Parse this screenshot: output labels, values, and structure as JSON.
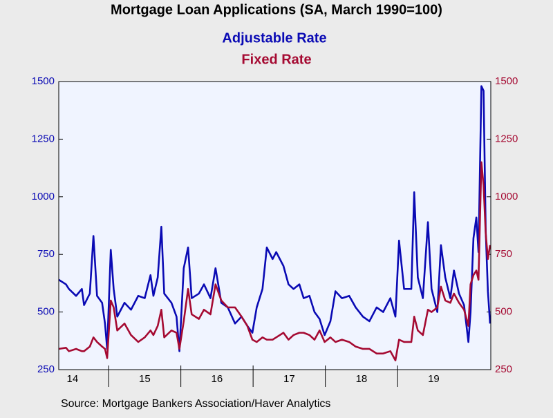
{
  "chart_data": {
    "type": "line",
    "title": "Mortgage Loan Applications (SA, March 1990=100)",
    "source": "Source:  Mortgage Bankers Association/Haver Analytics",
    "x": [
      14.31,
      14.41,
      14.45,
      14.55,
      14.63,
      14.66,
      14.74,
      14.79,
      14.84,
      14.91,
      14.95,
      14.98,
      15.03,
      15.07,
      15.12,
      15.22,
      15.31,
      15.41,
      15.5,
      15.58,
      15.62,
      15.68,
      15.73,
      15.77,
      15.87,
      15.94,
      15.98,
      16.04,
      16.1,
      16.15,
      16.25,
      16.32,
      16.41,
      16.48,
      16.56,
      16.65,
      16.75,
      16.84,
      16.92,
      16.99,
      17.05,
      17.13,
      17.19,
      17.27,
      17.32,
      17.42,
      17.49,
      17.56,
      17.64,
      17.7,
      17.78,
      17.85,
      17.92,
      17.99,
      18.07,
      18.14,
      18.23,
      18.33,
      18.42,
      18.52,
      18.61,
      18.71,
      18.8,
      18.9,
      18.97,
      19.02,
      19.09,
      19.19,
      19.23,
      19.28,
      19.35,
      19.42,
      19.47,
      19.55,
      19.6,
      19.66,
      19.73,
      19.78,
      19.85,
      19.92,
      19.98,
      20.01,
      20.05,
      20.09,
      20.12,
      20.16,
      20.19,
      20.22,
      20.25,
      20.28
    ],
    "xlim": [
      14.31,
      20.29
    ],
    "xticks": [
      {
        "value": 14,
        "label": "14"
      },
      {
        "value": 15,
        "label": "15"
      },
      {
        "value": 16,
        "label": "16"
      },
      {
        "value": 17,
        "label": "17"
      },
      {
        "value": 18,
        "label": "18"
      },
      {
        "value": 19,
        "label": "19"
      }
    ],
    "series": [
      {
        "name": "Adjustable Rate",
        "color": "#0a0ab4",
        "axis": "y",
        "values": [
          640,
          620,
          600,
          570,
          600,
          530,
          580,
          830,
          570,
          540,
          450,
          340,
          770,
          600,
          480,
          540,
          510,
          570,
          560,
          660,
          570,
          650,
          870,
          580,
          540,
          480,
          330,
          690,
          780,
          560,
          580,
          620,
          560,
          690,
          540,
          520,
          450,
          480,
          440,
          410,
          520,
          600,
          780,
          730,
          760,
          700,
          620,
          600,
          620,
          560,
          570,
          500,
          470,
          400,
          460,
          590,
          560,
          570,
          520,
          480,
          460,
          520,
          500,
          560,
          480,
          810,
          600,
          600,
          1020,
          650,
          560,
          890,
          600,
          500,
          790,
          650,
          560,
          680,
          580,
          530,
          370,
          500,
          820,
          910,
          760,
          1480,
          1460,
          850,
          590,
          450
        ]
      },
      {
        "name": "Fixed Rate",
        "color": "#a50a32",
        "axis": "y2",
        "values": [
          340,
          345,
          330,
          340,
          330,
          330,
          350,
          390,
          370,
          350,
          340,
          300,
          550,
          520,
          420,
          450,
          400,
          370,
          390,
          420,
          400,
          440,
          510,
          390,
          420,
          410,
          340,
          460,
          600,
          490,
          470,
          510,
          490,
          620,
          550,
          520,
          520,
          480,
          440,
          380,
          370,
          390,
          380,
          380,
          390,
          410,
          380,
          400,
          410,
          410,
          400,
          380,
          420,
          370,
          390,
          370,
          380,
          370,
          350,
          340,
          340,
          320,
          320,
          330,
          290,
          380,
          370,
          370,
          480,
          420,
          400,
          510,
          500,
          520,
          610,
          550,
          540,
          580,
          540,
          510,
          440,
          620,
          660,
          680,
          640,
          1150,
          1050,
          840,
          730,
          790
        ]
      }
    ],
    "ylim": [
      250,
      1500
    ],
    "yticks": [
      250,
      500,
      750,
      1000,
      1250,
      1500
    ],
    "y2lim": [
      250,
      1500
    ],
    "y2ticks": [
      250,
      500,
      750,
      1000,
      1250,
      1500
    ],
    "plot_background": "#f0f4ff"
  }
}
